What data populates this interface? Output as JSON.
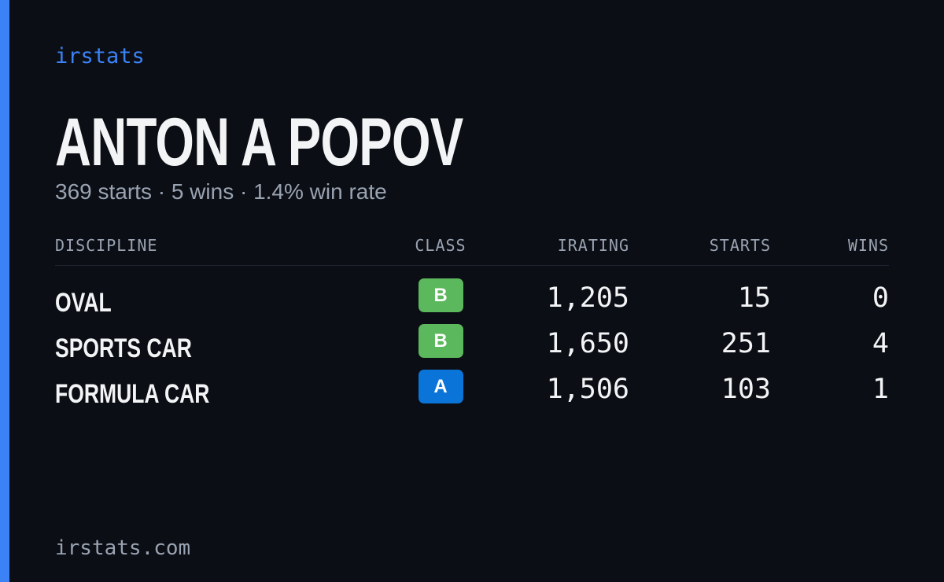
{
  "brand": "irstats",
  "title": "ANTON A POPOV",
  "subtitle": "369 starts · 5 wins · 1.4% win rate",
  "table": {
    "headers": [
      "DISCIPLINE",
      "CLASS",
      "IRATING",
      "STARTS",
      "WINS"
    ],
    "rows": [
      [
        "OVAL",
        "B",
        "1,205",
        "15",
        "0"
      ],
      [
        "SPORTS CAR",
        "B",
        "1,650",
        "251",
        "4"
      ],
      [
        "FORMULA CAR",
        "A",
        "1,506",
        "103",
        "1"
      ]
    ],
    "class_colors": [
      "#5cb85c",
      "#5cb85c",
      "#0b74d8"
    ]
  },
  "footer": "irstats.com"
}
